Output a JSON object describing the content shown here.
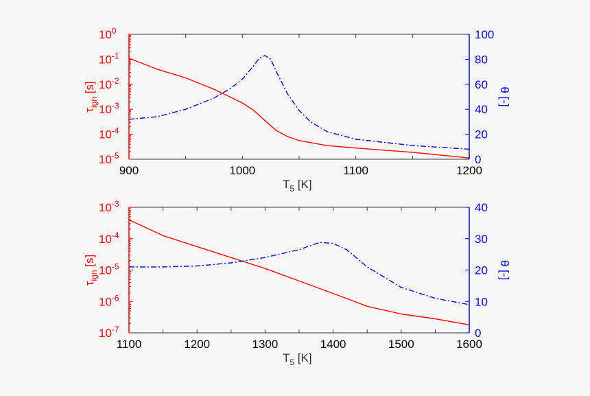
{
  "chart_data": [
    {
      "type": "line",
      "xlabel": "T5 [K]",
      "xlabel_main": "T",
      "xlabel_sub": "5",
      "xlabel_rest": " [K]",
      "ylabel_left_main": "τ",
      "ylabel_left_sub": "ign",
      "ylabel_left_rest": " [s]",
      "ylabel_right": "θ [-]",
      "xlim": [
        900,
        1200
      ],
      "xticks": [
        900,
        1000,
        1100,
        1200
      ],
      "ylim_left_log10": [
        -5,
        0
      ],
      "yscale_left": "log",
      "ylim_right": [
        0,
        100
      ],
      "yticks_right": [
        0,
        20,
        40,
        60,
        80,
        100
      ],
      "left_color": "#ff0000",
      "right_color": "#0000ff",
      "series": [
        {
          "axis": "left",
          "style": "solid",
          "x": [
            900,
            925,
            950,
            975,
            1000,
            1010,
            1020,
            1030,
            1040,
            1050,
            1075,
            1100,
            1150,
            1200
          ],
          "y": [
            0.11,
            0.04,
            0.018,
            0.0063,
            0.0018,
            0.00089,
            0.00035,
            0.00014,
            8e-05,
            5.6e-05,
            3.5e-05,
            2.8e-05,
            1.9e-05,
            1.12e-05
          ]
        },
        {
          "axis": "right",
          "style": "dashdot",
          "x": [
            900,
            925,
            950,
            975,
            990,
            1000,
            1010,
            1015,
            1020,
            1025,
            1030,
            1040,
            1050,
            1060,
            1075,
            1100,
            1150,
            1200
          ],
          "y": [
            32,
            34,
            40,
            49,
            57,
            64,
            75,
            81,
            83,
            80,
            70,
            52,
            39,
            30,
            22,
            16,
            11,
            8
          ]
        }
      ]
    },
    {
      "type": "line",
      "xlabel": "T5 [K]",
      "xlabel_main": "T",
      "xlabel_sub": "5",
      "xlabel_rest": " [K]",
      "ylabel_left_main": "τ",
      "ylabel_left_sub": "ign",
      "ylabel_left_rest": " [s]",
      "ylabel_right": "θ [-]",
      "xlim": [
        1100,
        1600
      ],
      "xticks": [
        1100,
        1200,
        1300,
        1400,
        1500,
        1600
      ],
      "ylim_left_log10": [
        -7,
        -3
      ],
      "yscale_left": "log",
      "ylim_right": [
        0,
        40
      ],
      "yticks_right": [
        0,
        10,
        20,
        30,
        40
      ],
      "left_color": "#ff0000",
      "right_color": "#0000ff",
      "series": [
        {
          "axis": "left",
          "style": "solid",
          "x": [
            1100,
            1150,
            1200,
            1250,
            1300,
            1350,
            1400,
            1450,
            1500,
            1550,
            1600
          ],
          "y": [
            0.0004,
            0.000125,
            5.6e-05,
            2.5e-05,
            1.12e-05,
            4.5e-06,
            1.8e-06,
            7e-07,
            4e-07,
            2.8e-07,
            1.8e-07
          ]
        },
        {
          "axis": "right",
          "style": "dashdot",
          "x": [
            1100,
            1150,
            1200,
            1250,
            1300,
            1350,
            1380,
            1400,
            1420,
            1450,
            1500,
            1550,
            1600
          ],
          "y": [
            21,
            21,
            21.3,
            22.3,
            24,
            26.5,
            28.8,
            28.5,
            26.5,
            21,
            14.5,
            11,
            9
          ]
        }
      ]
    }
  ]
}
